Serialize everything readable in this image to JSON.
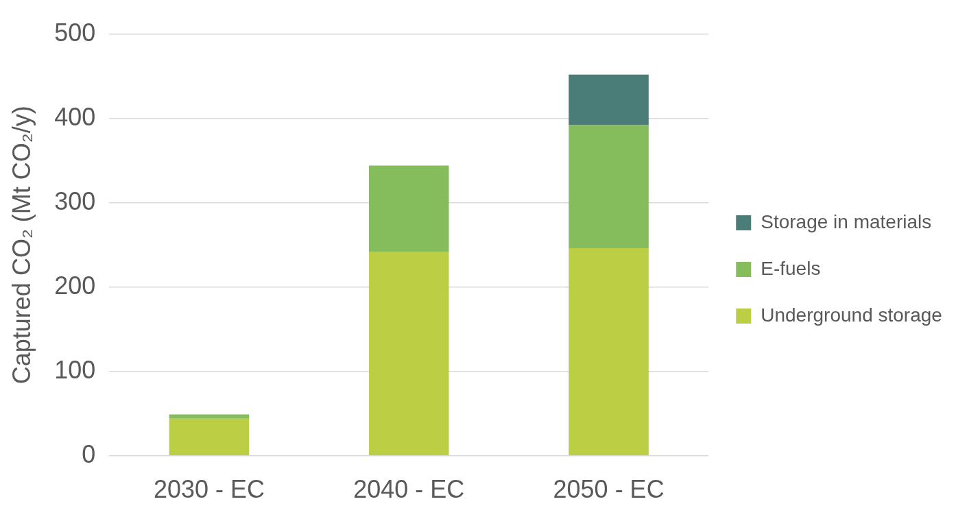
{
  "chart_data": {
    "type": "bar",
    "ylabel": "Captured CO₂ (Mt CO₂/y)",
    "categories": [
      "2030 - EC",
      "2040 - EC",
      "2050 - EC"
    ],
    "stacked": true,
    "series": [
      {
        "name": "Underground storage",
        "color": "#bccf44",
        "values": [
          44,
          242,
          246
        ]
      },
      {
        "name": "E-fuels",
        "color": "#86bd5c",
        "values": [
          5,
          102,
          146
        ]
      },
      {
        "name": "Storage in materials",
        "color": "#4a7d78",
        "values": [
          0,
          0,
          60
        ]
      }
    ],
    "ylim": [
      0,
      500
    ],
    "yticks": [
      0,
      100,
      200,
      300,
      400,
      500
    ],
    "grid": "y",
    "legend": "right"
  }
}
